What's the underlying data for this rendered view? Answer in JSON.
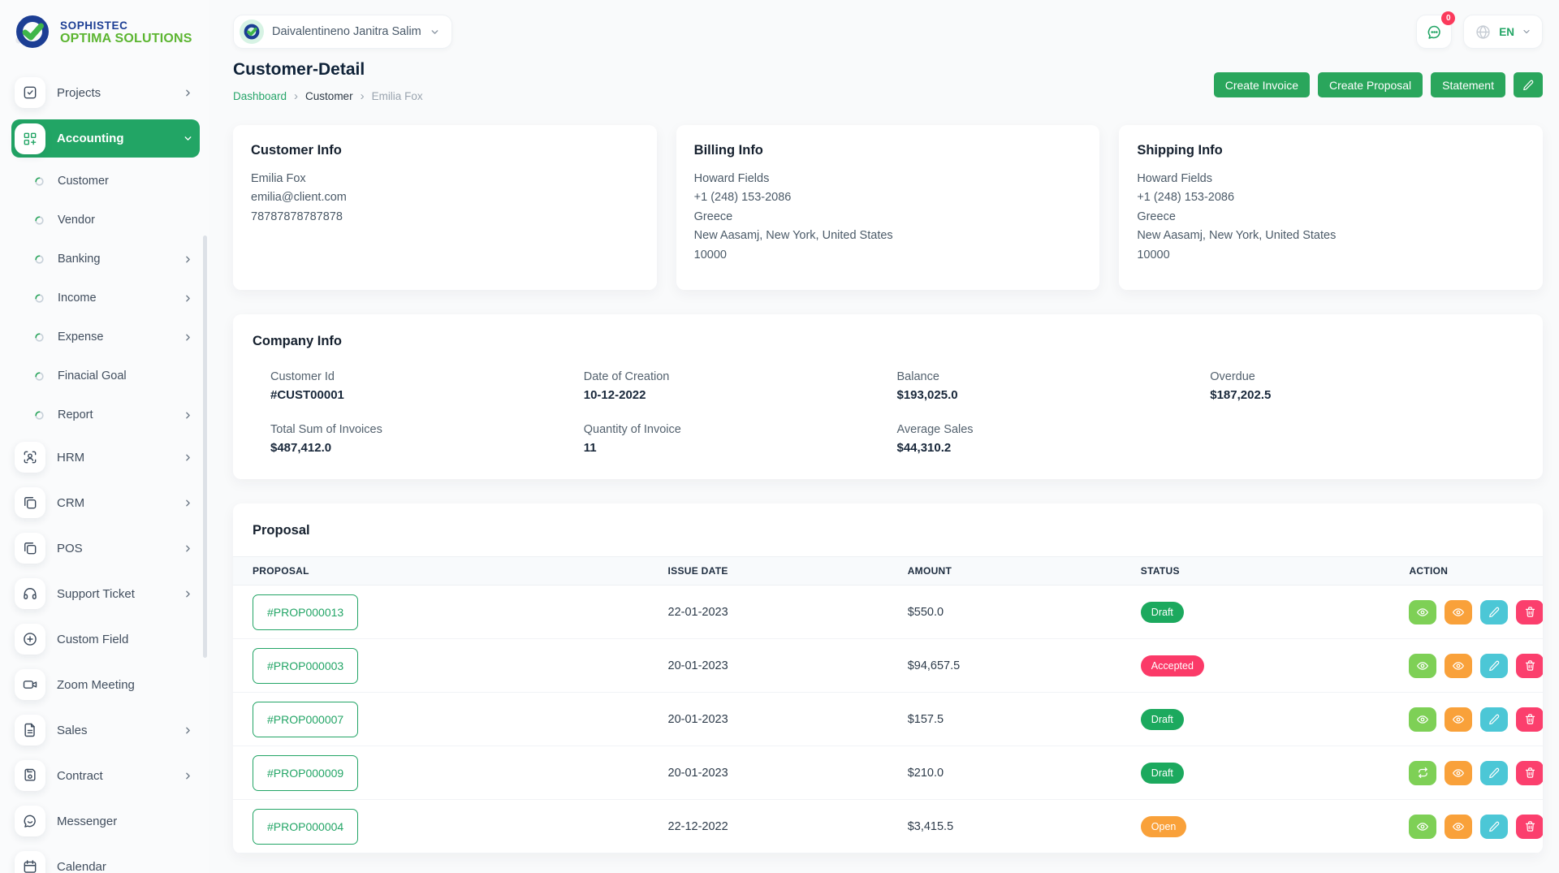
{
  "brand": {
    "line1": "SOPHISTEC",
    "line2": "OPTIMA SOLUTIONS"
  },
  "topbar": {
    "user_name": "Daivalentineno Janitra Salim",
    "chat_badge": "0",
    "language": "EN"
  },
  "page": {
    "title": "Customer-Detail",
    "breadcrumb": [
      "Dashboard",
      "Customer",
      "Emilia Fox"
    ],
    "buttons": {
      "create_invoice": "Create Invoice",
      "create_proposal": "Create Proposal",
      "statement": "Statement"
    }
  },
  "sidebar": {
    "items": [
      {
        "label": "Projects",
        "icon": "checkbox-icon",
        "type": "major",
        "chevron": "right"
      },
      {
        "label": "Accounting",
        "icon": "grid-plus-icon",
        "type": "major",
        "active": true,
        "chevron": "down"
      },
      {
        "label": "Customer",
        "type": "sub"
      },
      {
        "label": "Vendor",
        "type": "sub"
      },
      {
        "label": "Banking",
        "type": "sub",
        "chevron": "right"
      },
      {
        "label": "Income",
        "type": "sub",
        "chevron": "right"
      },
      {
        "label": "Expense",
        "type": "sub",
        "chevron": "right"
      },
      {
        "label": "Finacial Goal",
        "type": "sub"
      },
      {
        "label": "Report",
        "type": "sub",
        "chevron": "right"
      },
      {
        "label": "HRM",
        "icon": "user-scan-icon",
        "type": "major",
        "chevron": "right"
      },
      {
        "label": "CRM",
        "icon": "copy-icon",
        "type": "major",
        "chevron": "right"
      },
      {
        "label": "POS",
        "icon": "copy-icon",
        "type": "major",
        "chevron": "right"
      },
      {
        "label": "Support Ticket",
        "icon": "headphones-icon",
        "type": "major",
        "chevron": "right"
      },
      {
        "label": "Custom Field",
        "icon": "plus-circle-icon",
        "type": "major"
      },
      {
        "label": "Zoom Meeting",
        "icon": "video-icon",
        "type": "major"
      },
      {
        "label": "Sales",
        "icon": "file-icon",
        "type": "major",
        "chevron": "right"
      },
      {
        "label": "Contract",
        "icon": "floppy-icon",
        "type": "major",
        "chevron": "right"
      },
      {
        "label": "Messenger",
        "icon": "message-smile-icon",
        "type": "major"
      },
      {
        "label": "Calendar",
        "icon": "calendar-icon",
        "type": "major"
      }
    ]
  },
  "info_cards": [
    {
      "title": "Customer Info",
      "lines": [
        "Emilia Fox",
        "emilia@client.com",
        "78787878787878"
      ]
    },
    {
      "title": "Billing Info",
      "lines": [
        "Howard Fields",
        "+1 (248) 153-2086",
        "Greece",
        "New Aasamj, New York, United States",
        "10000"
      ]
    },
    {
      "title": "Shipping Info",
      "lines": [
        "Howard Fields",
        "+1 (248) 153-2086",
        "Greece",
        "New Aasamj, New York, United States",
        "10000"
      ]
    }
  ],
  "company_info": {
    "title": "Company Info",
    "fields": [
      {
        "label": "Customer Id",
        "value": "#CUST00001"
      },
      {
        "label": "Date of Creation",
        "value": "10-12-2022"
      },
      {
        "label": "Balance",
        "value": "$193,025.0"
      },
      {
        "label": "Overdue",
        "value": "$187,202.5"
      },
      {
        "label": "Total Sum of Invoices",
        "value": "$487,412.0"
      },
      {
        "label": "Quantity of Invoice",
        "value": "11"
      },
      {
        "label": "Average Sales",
        "value": "$44,310.2"
      }
    ]
  },
  "proposal": {
    "title": "Proposal",
    "headers": [
      "PROPOSAL",
      "ISSUE DATE",
      "AMOUNT",
      "STATUS",
      "ACTION"
    ],
    "rows": [
      {
        "id": "#PROP000013",
        "issue_date": "22-01-2023",
        "amount": "$550.0",
        "status": "Draft",
        "status_color": "green",
        "actions": [
          {
            "name": "view-button",
            "icon": "eye-icon",
            "color": "green"
          },
          {
            "name": "preview-button",
            "icon": "eye-icon",
            "color": "orange"
          },
          {
            "name": "edit-button",
            "icon": "pencil-icon",
            "color": "cyan"
          },
          {
            "name": "delete-button",
            "icon": "trash-icon",
            "color": "pink"
          }
        ]
      },
      {
        "id": "#PROP000003",
        "issue_date": "20-01-2023",
        "amount": "$94,657.5",
        "status": "Accepted",
        "status_color": "pink",
        "actions": [
          {
            "name": "view-button",
            "icon": "eye-icon",
            "color": "green"
          },
          {
            "name": "preview-button",
            "icon": "eye-icon",
            "color": "orange"
          },
          {
            "name": "edit-button",
            "icon": "pencil-icon",
            "color": "cyan"
          },
          {
            "name": "delete-button",
            "icon": "trash-icon",
            "color": "pink"
          }
        ]
      },
      {
        "id": "#PROP000007",
        "issue_date": "20-01-2023",
        "amount": "$157.5",
        "status": "Draft",
        "status_color": "green",
        "actions": [
          {
            "name": "view-button",
            "icon": "eye-icon",
            "color": "green"
          },
          {
            "name": "preview-button",
            "icon": "eye-icon",
            "color": "orange"
          },
          {
            "name": "edit-button",
            "icon": "pencil-icon",
            "color": "cyan"
          },
          {
            "name": "delete-button",
            "icon": "trash-icon",
            "color": "pink"
          }
        ]
      },
      {
        "id": "#PROP000009",
        "issue_date": "20-01-2023",
        "amount": "$210.0",
        "status": "Draft",
        "status_color": "green",
        "actions": [
          {
            "name": "convert-button",
            "icon": "refresh-icon",
            "color": "green"
          },
          {
            "name": "preview-button",
            "icon": "eye-icon",
            "color": "orange"
          },
          {
            "name": "edit-button",
            "icon": "pencil-icon",
            "color": "cyan"
          },
          {
            "name": "delete-button",
            "icon": "trash-icon",
            "color": "pink"
          }
        ]
      },
      {
        "id": "#PROP000004",
        "issue_date": "22-12-2022",
        "amount": "$3,415.5",
        "status": "Open",
        "status_color": "orange",
        "actions": [
          {
            "name": "view-button",
            "icon": "eye-icon",
            "color": "green"
          },
          {
            "name": "preview-button",
            "icon": "eye-icon",
            "color": "orange"
          },
          {
            "name": "edit-button",
            "icon": "pencil-icon",
            "color": "cyan"
          },
          {
            "name": "delete-button",
            "icon": "trash-icon",
            "color": "pink"
          }
        ]
      }
    ]
  },
  "colors": {
    "primary_green": "#22a565",
    "button_green": "#2aa65c",
    "badge_green": "#1ca95e",
    "action_light_green": "#7ed056",
    "orange": "#f9a13a",
    "cyan": "#4cc7d6",
    "pink": "#fb3f6d",
    "brand_navy": "#1c3e94",
    "brand_green": "#5cb531",
    "notification_red": "#fb3a5c"
  }
}
